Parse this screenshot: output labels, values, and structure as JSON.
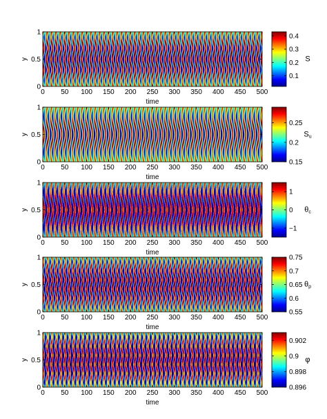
{
  "figure": {
    "panels": [
      {
        "ylabel": "y",
        "xlabel": "time",
        "cb_label": "S",
        "cb_sub": ""
      },
      {
        "ylabel": "y",
        "xlabel": "time",
        "cb_label": "S",
        "cb_sub": "u"
      },
      {
        "ylabel": "y",
        "xlabel": "time",
        "cb_label": "θ",
        "cb_sub": "c"
      },
      {
        "ylabel": "y",
        "xlabel": "time",
        "cb_label": "θ",
        "cb_sub": "p"
      },
      {
        "ylabel": "y",
        "xlabel": "time",
        "cb_label": "φ",
        "cb_sub": ""
      }
    ]
  },
  "chart_data": [
    {
      "type": "heatmap",
      "xlabel": "time",
      "ylabel": "y",
      "colorbar_label": "S",
      "xlim": [
        0,
        500
      ],
      "ylim": [
        0,
        1
      ],
      "x_ticks": [
        0,
        50,
        100,
        150,
        200,
        250,
        300,
        350,
        400,
        450,
        500
      ],
      "y_ticks": [
        0,
        0.5,
        1
      ],
      "clim": [
        0.02,
        0.43
      ],
      "colorbar_ticks": [
        0.1,
        0.2,
        0.3,
        0.4
      ],
      "colorbar_tick_labels": [
        "0.1",
        "0.2",
        "0.3",
        "0.4"
      ],
      "colormap": "jet",
      "pattern": {
        "period_time": 10,
        "y_bands": 5,
        "phase_skew": 0.6,
        "wave_amp": 0.55,
        "sharpness": 1.8,
        "bias": 0.35
      }
    },
    {
      "type": "heatmap",
      "xlabel": "time",
      "ylabel": "y",
      "colorbar_label": "S_u",
      "xlim": [
        0,
        500
      ],
      "ylim": [
        0,
        1
      ],
      "x_ticks": [
        0,
        50,
        100,
        150,
        200,
        250,
        300,
        350,
        400,
        450,
        500
      ],
      "y_ticks": [
        0,
        0.5,
        1
      ],
      "clim": [
        0.15,
        0.29
      ],
      "colorbar_ticks": [
        0.15,
        0.2,
        0.25
      ],
      "colorbar_tick_labels": [
        "0.15",
        "0.2",
        "0.25"
      ],
      "colormap": "jet",
      "pattern": {
        "period_time": 10,
        "y_bands": 3,
        "phase_skew": 1.0,
        "wave_amp": 0.8,
        "sharpness": 1.0,
        "bias": 0.15
      }
    },
    {
      "type": "heatmap",
      "xlabel": "time",
      "ylabel": "y",
      "colorbar_label": "θ_c",
      "xlim": [
        0,
        500
      ],
      "ylim": [
        0,
        1
      ],
      "x_ticks": [
        0,
        50,
        100,
        150,
        200,
        250,
        300,
        350,
        400,
        450,
        500
      ],
      "y_ticks": [
        0,
        0.5,
        1
      ],
      "clim": [
        -1.5,
        1.5
      ],
      "colorbar_ticks": [
        -1,
        0,
        1
      ],
      "colorbar_tick_labels": [
        "−1",
        "0",
        "1"
      ],
      "colormap": "jet",
      "pattern": {
        "period_time": 10,
        "y_bands": 3,
        "phase_skew": 1.0,
        "wave_amp": 0.7,
        "sharpness": 4.0,
        "bias": 0.0
      }
    },
    {
      "type": "heatmap",
      "xlabel": "time",
      "ylabel": "y",
      "colorbar_label": "θ_p",
      "xlim": [
        0,
        500
      ],
      "ylim": [
        0,
        1
      ],
      "x_ticks": [
        0,
        50,
        100,
        150,
        200,
        250,
        300,
        350,
        400,
        450,
        500
      ],
      "y_ticks": [
        0,
        0.5,
        1
      ],
      "clim": [
        0.55,
        0.75
      ],
      "colorbar_ticks": [
        0.55,
        0.6,
        0.65,
        0.7,
        0.75
      ],
      "colorbar_tick_labels": [
        "0.55",
        "0.6",
        "0.65",
        "0.7",
        "0.75"
      ],
      "colormap": "jet",
      "pattern": {
        "period_time": 10,
        "y_bands": 6,
        "phase_skew": 0.4,
        "wave_amp": 0.6,
        "sharpness": 2.5,
        "bias": 0.1
      }
    },
    {
      "type": "heatmap",
      "xlabel": "time",
      "ylabel": "y",
      "colorbar_label": "φ",
      "xlim": [
        0,
        500
      ],
      "ylim": [
        0,
        1
      ],
      "x_ticks": [
        0,
        50,
        100,
        150,
        200,
        250,
        300,
        350,
        400,
        450,
        500
      ],
      "y_ticks": [
        0,
        0.5,
        1
      ],
      "clim": [
        0.896,
        0.903
      ],
      "colorbar_ticks": [
        0.896,
        0.898,
        0.9,
        0.902
      ],
      "colorbar_tick_labels": [
        "0.896",
        "0.898",
        "0.9",
        "0.902"
      ],
      "colormap": "jet",
      "pattern": {
        "period_time": 10,
        "y_bands": 6,
        "phase_skew": 0.3,
        "wave_amp": 0.5,
        "sharpness": 3.0,
        "bias": -0.3
      }
    }
  ]
}
